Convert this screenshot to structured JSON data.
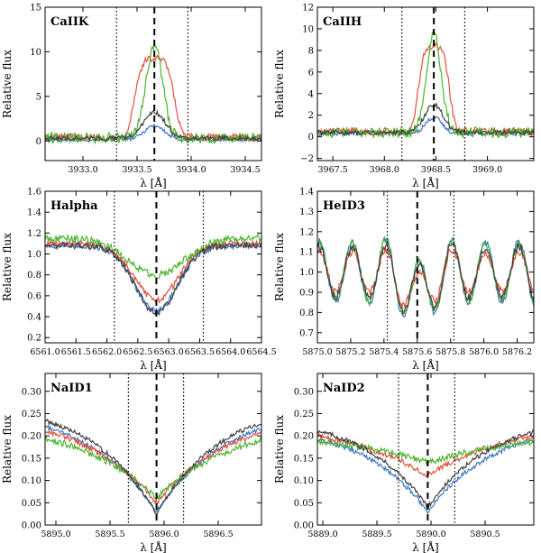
{
  "figure": {
    "ylabel": "Relative flux",
    "xlabel": "λ [Å]",
    "series_colors": {
      "c1": "#3b78c3",
      "c2": "#e2513c",
      "c3": "#4cb52f",
      "c4": "#404040"
    }
  },
  "chart_data": [
    {
      "type": "line",
      "title": "CaIIK",
      "xlabel": "λ [Å]",
      "ylabel": "Relative flux",
      "xlim": [
        3932.65,
        3934.65
      ],
      "ylim": [
        -2.2,
        15
      ],
      "xticks": [
        3933.0,
        3933.5,
        3934.0,
        3934.5
      ],
      "xtick_labels": [
        "3933.0",
        "3933.5",
        "3934.0",
        "3934.5"
      ],
      "xtick_labels_skip": [],
      "yticks": [
        0,
        5,
        10,
        15
      ],
      "ytick_labels": [
        "0",
        "5",
        "10",
        "15"
      ],
      "vlines": {
        "dashed": 3933.66,
        "dotted": [
          3933.31,
          3933.97
        ]
      },
      "series": [
        {
          "name": "c1",
          "shape": "emission",
          "base": 0.15,
          "amp": 1.6,
          "center": 3933.66,
          "width": 0.09,
          "noise": 0.2
        },
        {
          "name": "c2",
          "shape": "flattop",
          "base": 0.4,
          "amp": 8.8,
          "center": 3933.66,
          "width": 0.17,
          "noise": 0.4
        },
        {
          "name": "c3",
          "shape": "emission",
          "base": 0.35,
          "amp": 10.5,
          "center": 3933.66,
          "width": 0.075,
          "noise": 0.6
        },
        {
          "name": "c4",
          "shape": "emission",
          "base": 0.3,
          "amp": 2.9,
          "center": 3933.66,
          "width": 0.1,
          "noise": 0.25
        }
      ]
    },
    {
      "type": "line",
      "title": "CaIIH",
      "xlabel": "λ [Å]",
      "ylabel": "Relative flux",
      "xlim": [
        3967.35,
        3969.45
      ],
      "ylim": [
        -2.2,
        12
      ],
      "xticks": [
        3967.5,
        3968.0,
        3968.5,
        3969.0
      ],
      "xtick_labels": [
        "3967.5",
        "3968.0",
        "3968.5",
        "3969.0"
      ],
      "xtick_labels_skip": [],
      "yticks": [
        -2,
        0,
        2,
        4,
        6,
        8,
        10,
        12
      ],
      "ytick_labels": [
        "−2",
        "0",
        "2",
        "4",
        "6",
        "8",
        "10",
        "12"
      ],
      "vlines": {
        "dashed": 3968.48,
        "dotted": [
          3968.17,
          3968.78
        ]
      },
      "series": [
        {
          "name": "c1",
          "shape": "emission",
          "base": 0.3,
          "amp": 1.5,
          "center": 3968.48,
          "width": 0.08,
          "noise": 0.18
        },
        {
          "name": "c2",
          "shape": "flattop",
          "base": 0.5,
          "amp": 7.8,
          "center": 3968.48,
          "width": 0.14,
          "noise": 0.35
        },
        {
          "name": "c3",
          "shape": "emission",
          "base": 0.4,
          "amp": 9.2,
          "center": 3968.48,
          "width": 0.07,
          "noise": 0.5
        },
        {
          "name": "c4",
          "shape": "emission",
          "base": 0.4,
          "amp": 2.6,
          "center": 3968.48,
          "width": 0.09,
          "noise": 0.2
        }
      ]
    },
    {
      "type": "line",
      "title": "Halpha",
      "xlabel": "λ [Å]",
      "ylabel": "Relative flux",
      "xlim": [
        6561.0,
        6564.5
      ],
      "ylim": [
        0.15,
        1.6
      ],
      "xticks": [
        6561.0,
        6561.5,
        6562.0,
        6562.5,
        6563.0,
        6563.5,
        6564.0,
        6564.5
      ],
      "xtick_labels": [
        "6561.0",
        "6561.5",
        "6562.0",
        "6562.5",
        "6563.0",
        "6563.5",
        "6564.0",
        "6564.5"
      ],
      "xtick_labels_skip": [],
      "yticks": [
        0.2,
        0.4,
        0.6,
        0.8,
        1.0,
        1.2,
        1.4,
        1.6
      ],
      "ytick_labels": [
        "0.2",
        "0.4",
        "0.6",
        "0.8",
        "1.0",
        "1.2",
        "1.4",
        "1.6"
      ],
      "vlines": {
        "dashed": 6562.8,
        "dotted": [
          6562.12,
          6563.56
        ]
      },
      "series": [
        {
          "name": "c1",
          "shape": "absorption",
          "base": 1.08,
          "amp": 0.62,
          "center": 6562.8,
          "width": 0.35,
          "noise": 0.03
        },
        {
          "name": "c2",
          "shape": "absorption",
          "base": 1.1,
          "amp": 0.54,
          "center": 6562.8,
          "width": 0.35,
          "noise": 0.03
        },
        {
          "name": "c3",
          "shape": "absorption",
          "base": 1.15,
          "amp": 0.35,
          "center": 6562.8,
          "width": 0.45,
          "noise": 0.035
        },
        {
          "name": "c4",
          "shape": "absorption",
          "base": 1.08,
          "amp": 0.64,
          "center": 6562.8,
          "width": 0.34,
          "noise": 0.03
        }
      ]
    },
    {
      "type": "line",
      "title": "HeID3",
      "xlabel": "λ [Å]",
      "ylabel": "Relative flux",
      "xlim": [
        5875.0,
        5876.3
      ],
      "ylim": [
        0.65,
        1.4
      ],
      "xticks": [
        5875.0,
        5875.2,
        5875.4,
        5875.6,
        5875.8,
        5876.0,
        5876.2
      ],
      "xtick_labels": [
        "5875.0",
        "5875.2",
        "5875.4",
        "5875.6",
        "5875.8",
        "5876.0",
        "5876.2"
      ],
      "xtick_labels_skip": [],
      "yticks": [
        0.7,
        0.8,
        0.9,
        1.0,
        1.1,
        1.2,
        1.3,
        1.4
      ],
      "ytick_labels": [
        "0.7",
        "0.8",
        "0.9",
        "1.0",
        "1.1",
        "1.2",
        "1.3",
        "1.4"
      ],
      "vlines": {
        "dashed": 5875.6,
        "dotted": [
          5875.42,
          5875.82
        ]
      },
      "series": [
        {
          "name": "c1",
          "shape": "wave",
          "base": 1.0,
          "amp": 0.18,
          "center": 5875.6,
          "width": 0.06,
          "noise": 0.02
        },
        {
          "name": "c2",
          "shape": "wave",
          "base": 1.0,
          "amp": 0.12,
          "center": 5875.6,
          "width": 0.06,
          "noise": 0.02
        },
        {
          "name": "c3",
          "shape": "wave",
          "base": 1.0,
          "amp": 0.17,
          "center": 5875.6,
          "width": 0.06,
          "noise": 0.02
        },
        {
          "name": "c4",
          "shape": "wave",
          "base": 1.0,
          "amp": 0.15,
          "center": 5875.6,
          "width": 0.06,
          "noise": 0.02
        }
      ]
    },
    {
      "type": "line",
      "title": "NaID1",
      "xlabel": "λ [Å]",
      "ylabel": "Relative flux",
      "xlim": [
        5894.9,
        5896.9
      ],
      "ylim": [
        0.0,
        0.34
      ],
      "xticks": [
        5895.0,
        5895.5,
        5896.0,
        5896.5
      ],
      "xtick_labels": [
        "5895.0",
        "5895.5",
        "5896.0",
        "5896.5"
      ],
      "xtick_labels_skip": [],
      "yticks": [
        0.0,
        0.05,
        0.1,
        0.15,
        0.2,
        0.25,
        0.3
      ],
      "ytick_labels": [
        "0.00",
        "0.05",
        "0.10",
        "0.15",
        "0.20",
        "0.25",
        "0.30"
      ],
      "vlines": {
        "dashed": 5895.93,
        "dotted": [
          5895.67,
          5896.18
        ]
      },
      "series": [
        {
          "name": "c1",
          "shape": "vee",
          "base": 0.27,
          "amp": 0.24,
          "center": 5895.93,
          "width": 0.65,
          "noise": 0.005
        },
        {
          "name": "c2",
          "shape": "vee",
          "base": 0.26,
          "amp": 0.21,
          "center": 5895.93,
          "width": 0.7,
          "noise": 0.006
        },
        {
          "name": "c3",
          "shape": "vee",
          "base": 0.24,
          "amp": 0.18,
          "center": 5895.93,
          "width": 0.75,
          "noise": 0.007
        },
        {
          "name": "c4",
          "shape": "vee",
          "base": 0.28,
          "amp": 0.255,
          "center": 5895.93,
          "width": 0.6,
          "noise": 0.005
        }
      ]
    },
    {
      "type": "line",
      "title": "NaID2",
      "xlabel": "λ [Å]",
      "ylabel": "Relative flux",
      "xlim": [
        5888.95,
        5890.95
      ],
      "ylim": [
        0.0,
        0.34
      ],
      "xticks": [
        5889.0,
        5889.5,
        5890.0,
        5890.5
      ],
      "xtick_labels": [
        "5889.0",
        "5889.5",
        "5890.0",
        "5890.5"
      ],
      "xtick_labels_skip": [],
      "yticks": [
        0.0,
        0.05,
        0.1,
        0.15,
        0.2,
        0.25,
        0.3
      ],
      "ytick_labels": [
        "0.00",
        "0.05",
        "0.10",
        "0.15",
        "0.20",
        "0.25",
        "0.30"
      ],
      "vlines": {
        "dashed": 5889.97,
        "dotted": [
          5889.7,
          5890.22
        ]
      },
      "series": [
        {
          "name": "c1",
          "shape": "vee",
          "base": 0.23,
          "amp": 0.2,
          "center": 5889.97,
          "width": 0.6,
          "noise": 0.005
        },
        {
          "name": "c2",
          "shape": "vee",
          "base": 0.23,
          "amp": 0.12,
          "center": 5889.97,
          "width": 0.75,
          "noise": 0.006
        },
        {
          "name": "c3",
          "shape": "vee",
          "base": 0.21,
          "amp": 0.07,
          "center": 5889.97,
          "width": 0.9,
          "noise": 0.007
        },
        {
          "name": "c4",
          "shape": "vee",
          "base": 0.25,
          "amp": 0.21,
          "center": 5889.97,
          "width": 0.6,
          "noise": 0.005
        }
      ]
    }
  ]
}
